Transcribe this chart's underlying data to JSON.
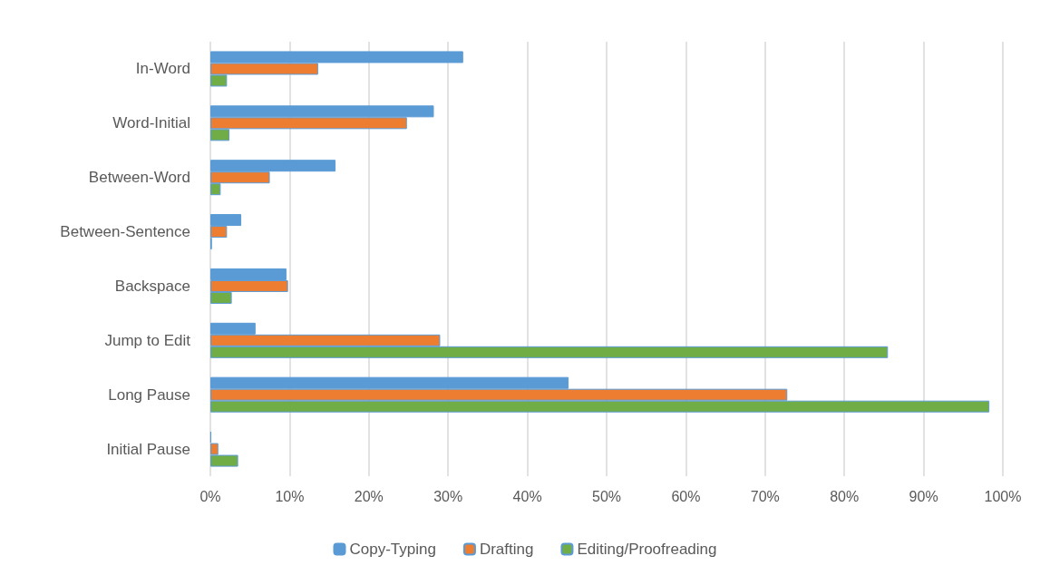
{
  "chart_data": {
    "type": "bar",
    "orientation": "horizontal",
    "categories": [
      "In-Word",
      "Word-Initial",
      "Between-Word",
      "Between-Sentence",
      "Backspace",
      "Jump to Edit",
      "Long Pause",
      "Initial Pause"
    ],
    "series": [
      {
        "name": "Copy-Typing",
        "color": "#5b9bd5",
        "values": [
          31.9,
          28.2,
          15.8,
          3.9,
          9.6,
          5.7,
          45.2,
          0.1
        ]
      },
      {
        "name": "Drafting",
        "color": "#ed7d31",
        "values": [
          13.6,
          24.8,
          7.5,
          2.1,
          9.8,
          29.0,
          72.8,
          1.0
        ]
      },
      {
        "name": "Editing/Proofreading",
        "color": "#70ad47",
        "values": [
          2.1,
          2.4,
          1.3,
          0.2,
          2.7,
          85.5,
          98.3,
          3.5
        ]
      }
    ],
    "xlim": [
      0,
      100
    ],
    "xticks": [
      {
        "value": 0,
        "label": "0%"
      },
      {
        "value": 10,
        "label": "10%"
      },
      {
        "value": 20,
        "label": "20%"
      },
      {
        "value": 30,
        "label": "30%"
      },
      {
        "value": 40,
        "label": "40%"
      },
      {
        "value": 50,
        "label": "50%"
      },
      {
        "value": 60,
        "label": "60%"
      },
      {
        "value": 70,
        "label": "70%"
      },
      {
        "value": 80,
        "label": "80%"
      },
      {
        "value": 90,
        "label": "90%"
      },
      {
        "value": 100,
        "label": "100%"
      }
    ],
    "grid": "x",
    "legend": "bottom"
  }
}
